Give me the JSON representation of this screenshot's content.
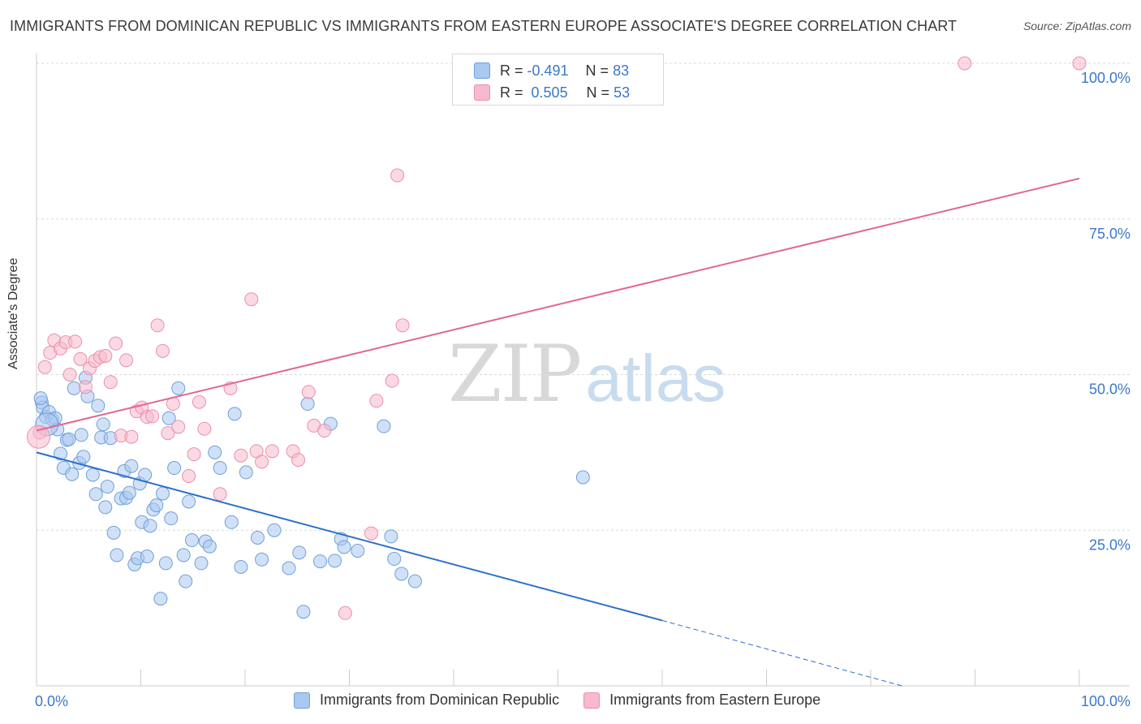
{
  "title": "IMMIGRANTS FROM DOMINICAN REPUBLIC VS IMMIGRANTS FROM EASTERN EUROPE ASSOCIATE'S DEGREE CORRELATION CHART",
  "source": "Source: ZipAtlas.com",
  "watermark": {
    "zip": "ZIP",
    "atlas": "atlas"
  },
  "legend_stats": {
    "r_label": "R =",
    "n_label": "N =",
    "rows": [
      {
        "r": "-0.491",
        "n": "83"
      },
      {
        "r": "0.505",
        "n": "53"
      }
    ]
  },
  "colors": {
    "blue_fill": "#a9c8f0",
    "blue_stroke": "#6f9fd8",
    "blue_line": "#2a6fcc",
    "pink_fill": "#f7b9cc",
    "pink_stroke": "#ea8fab",
    "pink_line": "#e06890",
    "tick_label": "#3a78c8",
    "grid": "#d8d8d8"
  },
  "chart_data": {
    "type": "scatter",
    "title": "IMMIGRANTS FROM DOMINICAN REPUBLIC VS IMMIGRANTS FROM EASTERN EUROPE ASSOCIATE'S DEGREE CORRELATION CHART",
    "xlabel": "",
    "ylabel": "Associate's Degree",
    "xlim": [
      0,
      100
    ],
    "ylim": [
      0,
      100
    ],
    "x_tick_labels": [
      "0.0%",
      "100.0%"
    ],
    "y_ticks": [
      25,
      50,
      75,
      100
    ],
    "y_tick_labels": [
      "25.0%",
      "50.0%",
      "75.0%",
      "100.0%"
    ],
    "grid": true,
    "legend_position": "bottom",
    "series": [
      {
        "name": "Immigrants from Dominican Republic",
        "color": "#a9c8f0",
        "r": -0.491,
        "n": 83,
        "trend": {
          "x0": 0,
          "y0": 37.5,
          "x1": 60,
          "y1": 10.5,
          "dashed_to_x": 83,
          "dashed_to_y": 0
        },
        "points": [
          [
            0.5,
            45.5
          ],
          [
            0.6,
            44.7
          ],
          [
            0.9,
            43.2
          ],
          [
            1.2,
            44
          ],
          [
            1.5,
            42.8
          ],
          [
            1.8,
            43
          ],
          [
            2,
            41.2
          ],
          [
            2.3,
            37.3
          ],
          [
            2.6,
            35
          ],
          [
            2.9,
            39.5
          ],
          [
            3.1,
            39.6
          ],
          [
            3.4,
            34
          ],
          [
            3.6,
            47.8
          ],
          [
            4.1,
            35.8
          ],
          [
            4.3,
            40.3
          ],
          [
            4.5,
            36.8
          ],
          [
            4.7,
            49.5
          ],
          [
            4.9,
            46.5
          ],
          [
            5.4,
            33.9
          ],
          [
            5.7,
            30.8
          ],
          [
            5.9,
            45
          ],
          [
            6.2,
            39.9
          ],
          [
            6.4,
            42
          ],
          [
            6.6,
            28.7
          ],
          [
            6.8,
            32
          ],
          [
            7.1,
            39.8
          ],
          [
            7.4,
            24.6
          ],
          [
            7.7,
            21
          ],
          [
            8.1,
            30.1
          ],
          [
            8.4,
            34.5
          ],
          [
            8.6,
            30.2
          ],
          [
            8.9,
            31
          ],
          [
            9.1,
            35.3
          ],
          [
            9.4,
            19.5
          ],
          [
            9.7,
            20.5
          ],
          [
            9.9,
            32.5
          ],
          [
            10.1,
            26.3
          ],
          [
            10.4,
            33.9
          ],
          [
            10.6,
            20.8
          ],
          [
            10.9,
            25.7
          ],
          [
            11.2,
            28.3
          ],
          [
            11.5,
            29
          ],
          [
            11.9,
            14
          ],
          [
            12.1,
            30.9
          ],
          [
            12.4,
            19.7
          ],
          [
            12.7,
            43
          ],
          [
            12.9,
            26.9
          ],
          [
            13.2,
            35
          ],
          [
            13.6,
            47.8
          ],
          [
            14.1,
            21
          ],
          [
            14.3,
            16.8
          ],
          [
            14.6,
            29.6
          ],
          [
            14.9,
            23.4
          ],
          [
            15.8,
            19.7
          ],
          [
            16.2,
            23.2
          ],
          [
            16.6,
            22.4
          ],
          [
            17.1,
            37.5
          ],
          [
            17.6,
            35
          ],
          [
            18.7,
            26.3
          ],
          [
            19,
            43.7
          ],
          [
            19.6,
            19.1
          ],
          [
            20.1,
            34.3
          ],
          [
            21.2,
            23.8
          ],
          [
            21.6,
            20.3
          ],
          [
            22.8,
            25
          ],
          [
            24.2,
            18.9
          ],
          [
            25.2,
            21.4
          ],
          [
            25.6,
            11.9
          ],
          [
            26,
            45.3
          ],
          [
            27.2,
            20
          ],
          [
            28.2,
            42.1
          ],
          [
            28.6,
            20.1
          ],
          [
            29.2,
            23.6
          ],
          [
            29.5,
            22.3
          ],
          [
            30.8,
            21.7
          ],
          [
            33.3,
            41.7
          ],
          [
            34,
            24
          ],
          [
            34.3,
            20.4
          ],
          [
            35,
            18
          ],
          [
            36.3,
            16.8
          ],
          [
            52.4,
            33.5
          ],
          [
            0.4,
            46.2
          ],
          [
            1.0,
            42.0
          ]
        ]
      },
      {
        "name": "Immigrants from Eastern Europe",
        "color": "#f7b9cc",
        "r": 0.505,
        "n": 53,
        "trend": {
          "x0": 0,
          "y0": 41,
          "x1": 100,
          "y1": 81.5
        },
        "points": [
          [
            0.3,
            40.7
          ],
          [
            0.8,
            51.2
          ],
          [
            1.3,
            53.5
          ],
          [
            1.7,
            55.5
          ],
          [
            2.3,
            54.2
          ],
          [
            2.8,
            55.2
          ],
          [
            3.2,
            50
          ],
          [
            3.7,
            55.3
          ],
          [
            4.2,
            52.5
          ],
          [
            4.7,
            48
          ],
          [
            5.1,
            51
          ],
          [
            5.6,
            52.2
          ],
          [
            6.1,
            52.8
          ],
          [
            6.6,
            53
          ],
          [
            7.1,
            48.8
          ],
          [
            7.6,
            55
          ],
          [
            8.1,
            40.2
          ],
          [
            8.6,
            52.3
          ],
          [
            9.1,
            40
          ],
          [
            9.6,
            44.1
          ],
          [
            10.1,
            44.7
          ],
          [
            10.6,
            43.2
          ],
          [
            11.1,
            43.3
          ],
          [
            11.6,
            57.9
          ],
          [
            12.1,
            53.8
          ],
          [
            12.6,
            40.6
          ],
          [
            13.1,
            45.3
          ],
          [
            13.6,
            41.6
          ],
          [
            14.6,
            33.7
          ],
          [
            15.1,
            37.2
          ],
          [
            15.6,
            45.6
          ],
          [
            16.1,
            41.3
          ],
          [
            17.6,
            30.8
          ],
          [
            18.6,
            47.8
          ],
          [
            19.6,
            37
          ],
          [
            20.6,
            62.1
          ],
          [
            21.1,
            37.7
          ],
          [
            21.6,
            36
          ],
          [
            22.6,
            37.7
          ],
          [
            24.6,
            37.7
          ],
          [
            25.1,
            36.3
          ],
          [
            26.1,
            47.2
          ],
          [
            26.6,
            41.8
          ],
          [
            27.6,
            41
          ],
          [
            29.6,
            11.7
          ],
          [
            32.1,
            24.5
          ],
          [
            32.6,
            45.8
          ],
          [
            34.1,
            49
          ],
          [
            34.6,
            82
          ],
          [
            35.1,
            57.9
          ],
          [
            89,
            100
          ],
          [
            100,
            100
          ],
          [
            0.2,
            40.0
          ]
        ]
      }
    ]
  },
  "bottom_legend": [
    {
      "label": "Immigrants from Dominican Republic"
    },
    {
      "label": "Immigrants from Eastern Europe"
    }
  ]
}
